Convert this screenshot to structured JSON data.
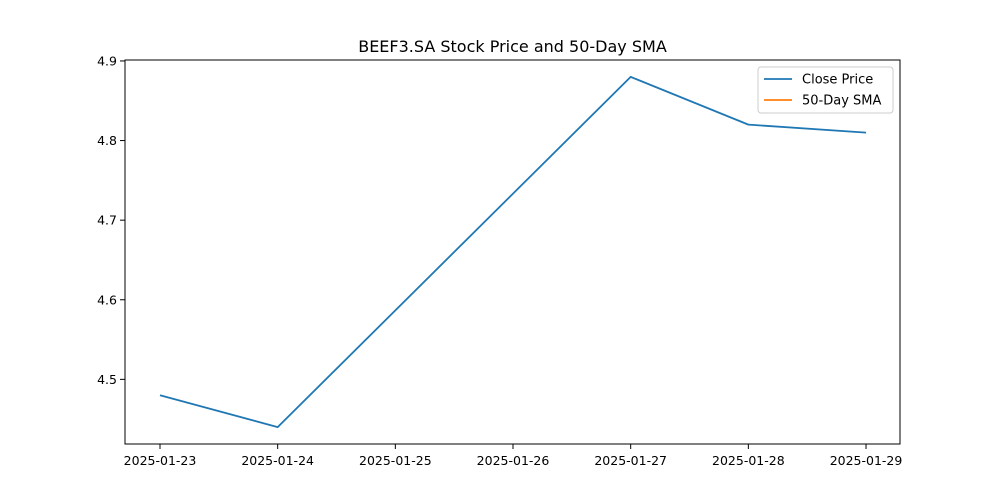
{
  "chart_data": {
    "type": "line",
    "title": "BEEF3.SA Stock Price and 50-Day SMA",
    "xlabel": "",
    "ylabel": "",
    "x": [
      "2025-01-23",
      "2025-01-24",
      "2025-01-25",
      "2025-01-26",
      "2025-01-27",
      "2025-01-28",
      "2025-01-29"
    ],
    "x_ticks": [
      "2025-01-23",
      "2025-01-24",
      "2025-01-25",
      "2025-01-26",
      "2025-01-27",
      "2025-01-28",
      "2025-01-29"
    ],
    "y_ticks": [
      "4.5",
      "4.6",
      "4.7",
      "4.8",
      "4.9"
    ],
    "ylim": [
      4.4188,
      4.9012
    ],
    "series": [
      {
        "name": "Close Price",
        "color": "#1f77b4",
        "points": [
          {
            "x": "2025-01-23",
            "y": 4.48
          },
          {
            "x": "2025-01-24",
            "y": 4.44
          },
          {
            "x": "2025-01-27",
            "y": 4.88
          },
          {
            "x": "2025-01-28",
            "y": 4.82
          },
          {
            "x": "2025-01-29",
            "y": 4.81
          }
        ]
      },
      {
        "name": "50-Day SMA",
        "color": "#ff7f0e",
        "points": []
      }
    ],
    "legend_position": "top-right",
    "grid": false
  }
}
